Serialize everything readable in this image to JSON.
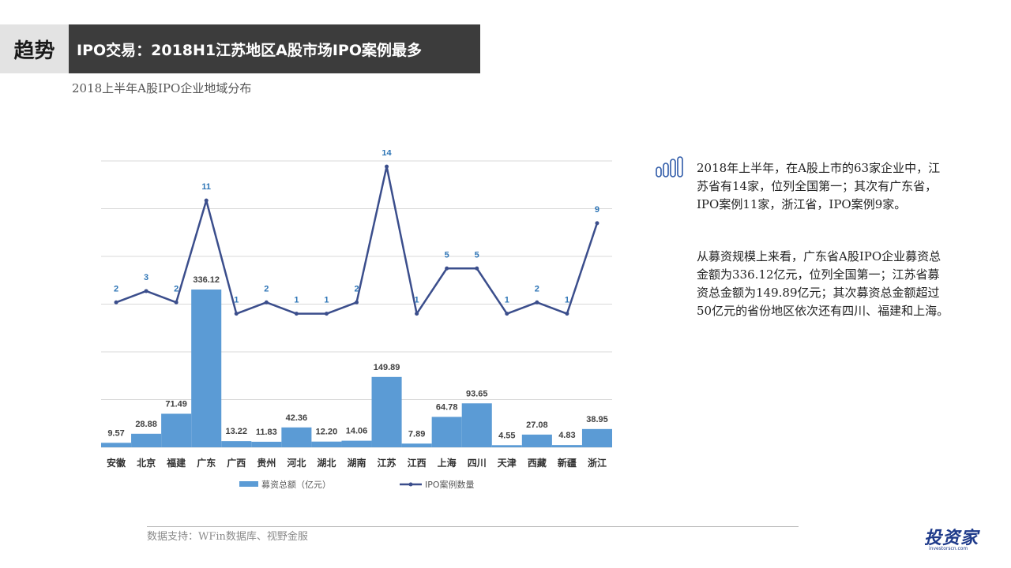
{
  "header": {
    "tag": "趋势",
    "title": "IPO交易：2018H1江苏地区A股市场IPO案例最多"
  },
  "subtitle": "2018上半年A股IPO企业地域分布",
  "text": {
    "para1": "2018年上半年，在A股上市的63家企业中，江苏省有14家，位列全国第一；其次有广东省，IPO案例11家，浙江省，IPO案例9家。",
    "para2": "从募资规模上来看，广东省A股IPO企业募资总金额为336.12亿元，位列全国第一；江苏省募资总金额为149.89亿元；其次募资总金额超过50亿元的省份地区依次还有四川、福建和上海。"
  },
  "source": "数据支持：WFin数据库、视野金服",
  "logo": {
    "main": "投资家",
    "sub": "investorscn.com"
  },
  "colors": {
    "bar": "#5b9bd5",
    "line": "#3b4e8c",
    "header_bg": "#3c3c3c",
    "tag_bg": "#e3e3e3"
  },
  "chart_data": {
    "type": "bar+line",
    "categories": [
      "安徽",
      "北京",
      "福建",
      "广东",
      "广西",
      "贵州",
      "河北",
      "湖北",
      "湖南",
      "江苏",
      "江西",
      "上海",
      "四川",
      "天津",
      "西藏",
      "新疆",
      "浙江"
    ],
    "series": [
      {
        "name": "募资总额（亿元）",
        "type": "bar",
        "values": [
          9.57,
          28.88,
          71.49,
          336.12,
          13.22,
          11.83,
          42.36,
          12.2,
          14.06,
          149.89,
          7.89,
          64.78,
          93.65,
          4.55,
          27.08,
          4.83,
          38.95
        ],
        "labels": [
          "9.57",
          "28.88",
          "71.49",
          "336.12",
          "13.22",
          "11.83",
          "42.36",
          "12.20",
          "14.06",
          "149.89",
          "7.89",
          "64.78",
          "93.65",
          "4.55",
          "27.08",
          "4.83",
          "38.95"
        ]
      },
      {
        "name": "IPO案例数量",
        "type": "line",
        "values": [
          2,
          3,
          2,
          11,
          1,
          2,
          1,
          1,
          2,
          14,
          1,
          5,
          5,
          1,
          2,
          1,
          9
        ]
      }
    ],
    "grid": true,
    "legend_position": "bottom"
  }
}
